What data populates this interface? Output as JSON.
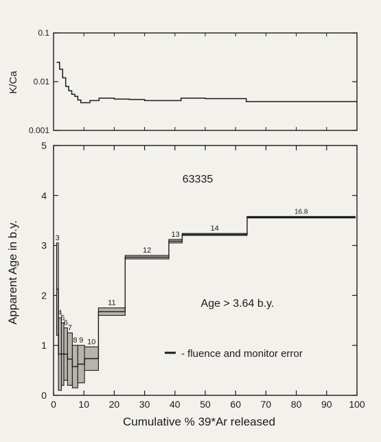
{
  "chart_data": [
    {
      "type": "line",
      "step": true,
      "title": "",
      "xlabel": "",
      "ylabel": "K/Ca",
      "yscale": "log",
      "ylim": [
        0.001,
        0.1
      ],
      "xlim": [
        0,
        100
      ],
      "grid": false,
      "yticks": [
        {
          "value": 0.1,
          "label": "0.1"
        },
        {
          "value": 0.01,
          "label": "0.01"
        },
        {
          "value": 0.001,
          "label": "0.001"
        }
      ],
      "series": [
        {
          "x": [
            1,
            2,
            3,
            4,
            5,
            6,
            7,
            8,
            9,
            10,
            12,
            15,
            20,
            25,
            30,
            38,
            42,
            50,
            60,
            63.5,
            70,
            80,
            90,
            100
          ],
          "values": [
            0.025,
            0.018,
            0.012,
            0.008,
            0.0065,
            0.0055,
            0.005,
            0.0042,
            0.0037,
            0.0037,
            0.0041,
            0.0046,
            0.0044,
            0.0043,
            0.0041,
            0.0041,
            0.0046,
            0.0045,
            0.0045,
            0.0039,
            0.0039,
            0.0039,
            0.0039,
            0.0039
          ]
        }
      ]
    },
    {
      "type": "step-spectrum",
      "title": "",
      "xlabel": "Cumulative % 39*Ar released",
      "ylabel": "Apparent Age in b.y.",
      "ylim": [
        0,
        5
      ],
      "xlim": [
        0,
        100
      ],
      "grid": false,
      "xticks": [
        0,
        10,
        20,
        30,
        40,
        50,
        60,
        70,
        80,
        90,
        100
      ],
      "yticks": [
        0,
        1,
        2,
        3,
        4,
        5
      ],
      "steps": [
        {
          "label": "3",
          "x0": 1.0,
          "x1": 1.6,
          "ymin": 1.2,
          "ymax": 3.05
        },
        {
          "label": "4",
          "x0": 1.6,
          "x1": 2.6,
          "ymin": 0.1,
          "ymax": 1.55
        },
        {
          "label": "5",
          "x0": 2.6,
          "x1": 3.4,
          "ymin": 0.2,
          "ymax": 1.45
        },
        {
          "label": "6",
          "x0": 3.4,
          "x1": 4.6,
          "ymin": 0.3,
          "ymax": 1.35
        },
        {
          "label": "7",
          "x0": 4.6,
          "x1": 6.2,
          "ymin": 0.2,
          "ymax": 1.25
        },
        {
          "label": "8",
          "x0": 6.2,
          "x1": 8.0,
          "ymin": 0.15,
          "ymax": 1.0
        },
        {
          "label": "9",
          "x0": 8.0,
          "x1": 10.2,
          "ymin": 0.25,
          "ymax": 1.0
        },
        {
          "label": "10",
          "x0": 10.2,
          "x1": 14.8,
          "ymin": 0.5,
          "ymax": 0.97
        },
        {
          "label": "11",
          "x0": 14.8,
          "x1": 23.6,
          "ymin": 1.6,
          "ymax": 1.75
        },
        {
          "label": "12",
          "x0": 23.6,
          "x1": 38.0,
          "ymin": 2.73,
          "ymax": 2.8
        },
        {
          "label": "13",
          "x0": 38.0,
          "x1": 42.4,
          "ymin": 3.05,
          "ymax": 3.12
        },
        {
          "label": "14",
          "x0": 42.4,
          "x1": 63.8,
          "ymin": 3.2,
          "ymax": 3.24
        },
        {
          "label": "16.8",
          "x0": 63.8,
          "x1": 99.4,
          "ymin": 3.55,
          "ymax": 3.58
        }
      ],
      "annotations": {
        "sample": "63335",
        "age": "Age > 3.64 b.y.",
        "legend": "- fluence and monitor error"
      },
      "legend_position": "bottom-right"
    }
  ]
}
